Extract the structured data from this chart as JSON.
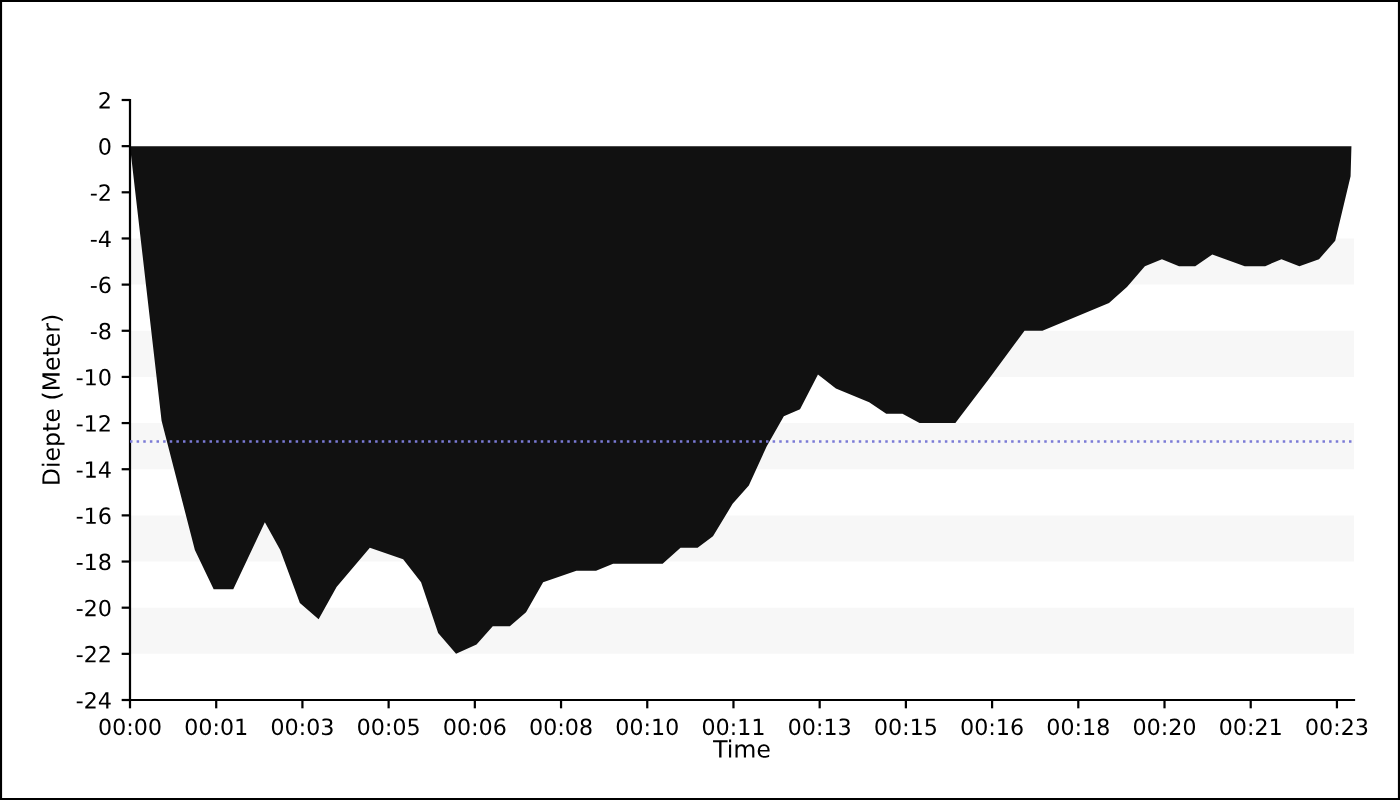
{
  "chart_data": {
    "type": "area",
    "xlabel": "Time",
    "ylabel": "Diepte (Meter)",
    "x": [
      "2000-01-01T00:00:00",
      "2000-01-01T00:00:19",
      "2000-01-01T00:00:37",
      "2000-01-01T00:01:16",
      "2000-01-01T00:01:38",
      "2000-01-01T00:02:01",
      "2000-01-01T00:02:38",
      "2000-01-01T00:02:56",
      "2000-01-01T00:03:19",
      "2000-01-01T00:03:41",
      "2000-01-01T00:04:02",
      "2000-01-01T00:04:41",
      "2000-01-01T00:05:20",
      "2000-01-01T00:05:41",
      "2000-01-01T00:06:01",
      "2000-01-01T00:06:22",
      "2000-01-01T00:06:46",
      "2000-01-01T00:07:05",
      "2000-01-01T00:07:25",
      "2000-01-01T00:07:44",
      "2000-01-01T00:08:04",
      "2000-01-01T00:08:43",
      "2000-01-01T00:09:06",
      "2000-01-01T00:09:26",
      "2000-01-01T00:10:24",
      "2000-01-01T00:10:45",
      "2000-01-01T00:11:05",
      "2000-01-01T00:11:23",
      "2000-01-01T00:11:46",
      "2000-01-01T00:12:05",
      "2000-01-01T00:12:26",
      "2000-01-01T00:12:46",
      "2000-01-01T00:13:05",
      "2000-01-01T00:13:26",
      "2000-01-01T00:13:47",
      "2000-01-01T00:14:26",
      "2000-01-01T00:14:46",
      "2000-01-01T00:15:05",
      "2000-01-01T00:15:25",
      "2000-01-01T00:16:07",
      "2000-01-01T00:16:46",
      "2000-01-01T00:17:28",
      "2000-01-01T00:17:49",
      "2000-01-01T00:19:07",
      "2000-01-01T00:19:28",
      "2000-01-01T00:19:49",
      "2000-01-01T00:20:09",
      "2000-01-01T00:20:29",
      "2000-01-01T00:20:48",
      "2000-01-01T00:21:08",
      "2000-01-01T00:21:46",
      "2000-01-01T00:22:10",
      "2000-01-01T00:22:29",
      "2000-01-01T00:22:50",
      "2000-01-01T00:23:13",
      "2000-01-01T00:23:32",
      "2000-01-01T00:23:50",
      "2000-01-01T00:23:51"
    ],
    "series": [
      {
        "color": "#111111",
        "values": [
          0,
          -6.1,
          -11.9,
          -17.5,
          -19.2,
          -19.2,
          -16.3,
          -17.5,
          -19.8,
          -20.5,
          -19.1,
          -17.4,
          -17.9,
          -18.9,
          -21.1,
          -22.0,
          -21.6,
          -20.8,
          -20.8,
          -20.2,
          -18.9,
          -18.4,
          -18.4,
          -18.1,
          -18.1,
          -17.4,
          -17.4,
          -16.9,
          -15.5,
          -14.7,
          -13.0,
          -11.7,
          -11.4,
          -9.9,
          -10.5,
          -11.1,
          -11.6,
          -11.6,
          -12.0,
          -12.0,
          -10.1,
          -8.0,
          -8.0,
          -6.8,
          -6.1,
          -5.2,
          -4.9,
          -5.2,
          -5.2,
          -4.7,
          -5.2,
          -5.2,
          -4.9,
          -5.2,
          -4.9,
          -4.1,
          -1.3,
          0
        ]
      }
    ],
    "xlim": [
      "2000-01-01T00:00:00",
      "2000-01-01T00:23:54"
    ],
    "xticks": [
      {
        "value": "2000-01-01T00:00:00",
        "label": "00:00"
      },
      {
        "value": "2000-01-01T00:01:41",
        "label": "00:01"
      },
      {
        "value": "2000-01-01T00:03:22",
        "label": "00:03"
      },
      {
        "value": "2000-01-01T00:05:03",
        "label": "00:05"
      },
      {
        "value": "2000-01-01T00:06:44",
        "label": "00:06"
      },
      {
        "value": "2000-01-01T00:08:25",
        "label": "00:08"
      },
      {
        "value": "2000-01-01T00:10:06",
        "label": "00:10"
      },
      {
        "value": "2000-01-01T00:11:47",
        "label": "00:11"
      },
      {
        "value": "2000-01-01T00:13:28",
        "label": "00:13"
      },
      {
        "value": "2000-01-01T00:15:09",
        "label": "00:15"
      },
      {
        "value": "2000-01-01T00:16:50",
        "label": "00:16"
      },
      {
        "value": "2000-01-01T00:18:31",
        "label": "00:18"
      },
      {
        "value": "2000-01-01T00:20:12",
        "label": "00:20"
      },
      {
        "value": "2000-01-01T00:21:53",
        "label": "00:21"
      },
      {
        "value": "2000-01-01T00:23:34",
        "label": "00:23"
      }
    ],
    "ylim": [
      -24,
      2
    ],
    "yticks": [
      -24,
      -22,
      -20,
      -18,
      -16,
      -14,
      -12,
      -10,
      -8,
      -6,
      -4,
      -2,
      0,
      2
    ],
    "ref_lines": [
      {
        "axis": "y",
        "value": -12.8,
        "color": "#7b7bd6",
        "line_style": "dotted"
      }
    ],
    "bands": [
      {
        "axis": "y",
        "from": -4,
        "to": -6,
        "color": "#f7f7f7"
      },
      {
        "axis": "y",
        "from": -8,
        "to": -10,
        "color": "#f7f7f7"
      },
      {
        "axis": "y",
        "from": -12,
        "to": -14,
        "color": "#f7f7f7"
      },
      {
        "axis": "y",
        "from": -16,
        "to": -18,
        "color": "#f7f7f7"
      },
      {
        "axis": "y",
        "from": -20,
        "to": -22,
        "color": "#f7f7f7"
      }
    ],
    "grid": false,
    "legend": false
  }
}
